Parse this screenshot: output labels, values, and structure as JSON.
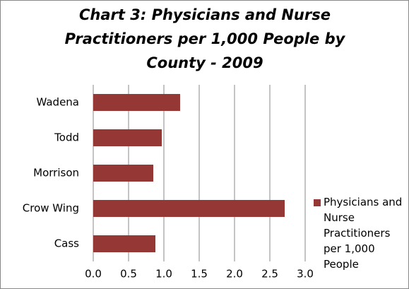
{
  "chart_data": {
    "type": "hbar",
    "title": "Chart 3: Physicians and Nurse Practitioners per 1,000 People by County - 2009",
    "categories": [
      "Cass",
      "Crow Wing",
      "Morrison",
      "Todd",
      "Wadena"
    ],
    "series": [
      {
        "name": "Physicians and Nurse Practitioners per 1,000 People",
        "color": "#953735",
        "values": [
          0.88,
          2.71,
          0.85,
          0.97,
          1.23
        ]
      }
    ],
    "xlim": [
      0,
      3
    ],
    "xticks": [
      {
        "value": 0,
        "label": "0.0"
      },
      0.5,
      {
        "value": 1,
        "label": "1.0"
      },
      1.5,
      {
        "value": 2,
        "label": "2.0"
      },
      2.5,
      {
        "value": 3,
        "label": "3.0"
      }
    ],
    "grid": true,
    "legend": "right"
  }
}
